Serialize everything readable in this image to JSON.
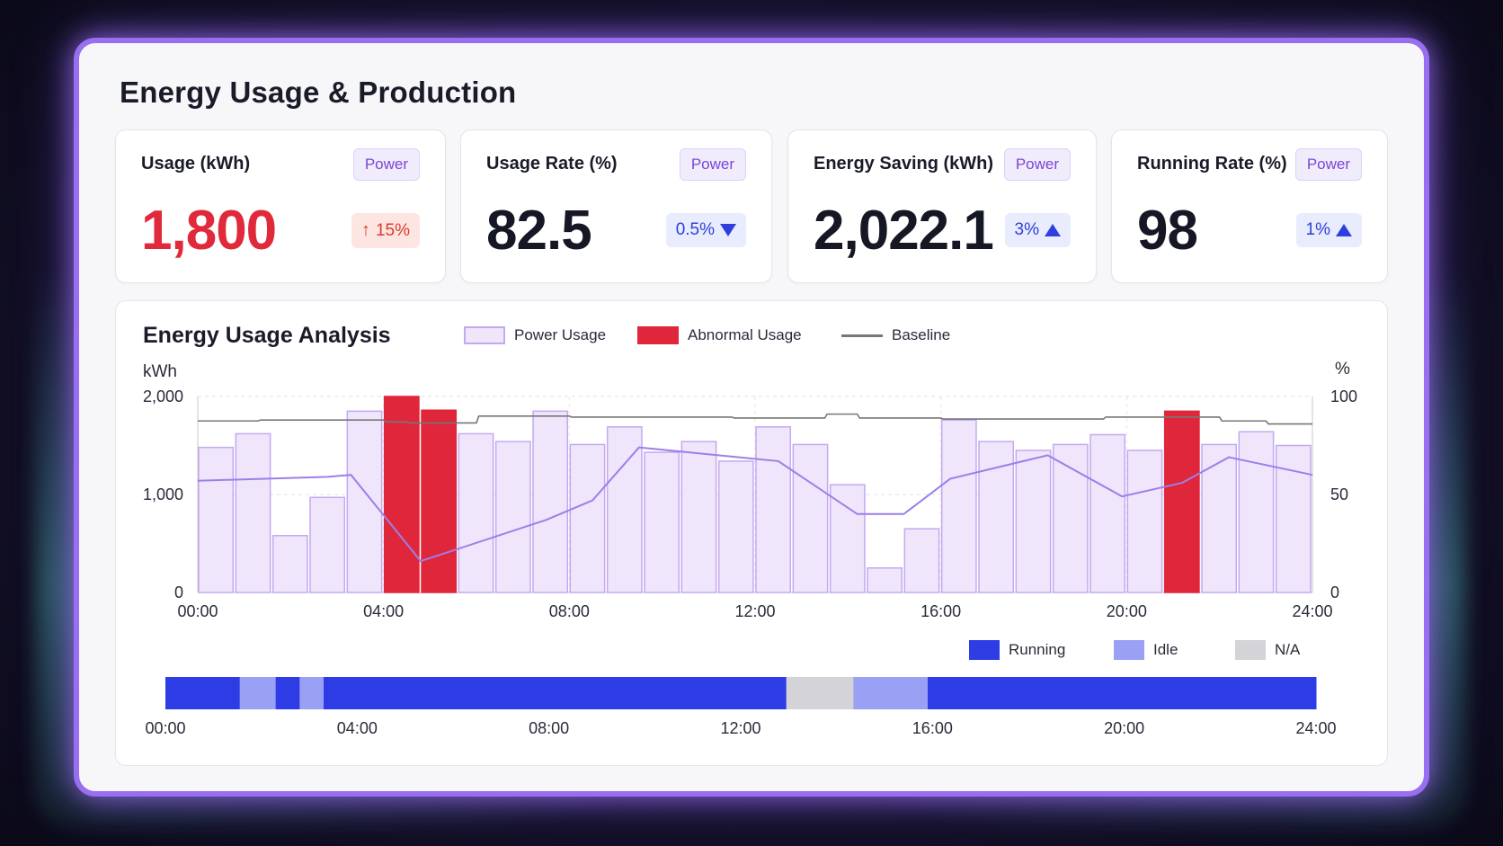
{
  "page": {
    "title": "Energy Usage & Production"
  },
  "cards": [
    {
      "label": "Usage (kWh)",
      "tag": "Power",
      "value": "1,800",
      "delta": "15%",
      "direction": "up",
      "tone": "red"
    },
    {
      "label": "Usage Rate (%)",
      "tag": "Power",
      "value": "82.5",
      "delta": "0.5%",
      "direction": "down",
      "tone": "blue"
    },
    {
      "label": "Energy Saving (kWh)",
      "tag": "Power",
      "value": "2,022.1",
      "delta": "3%",
      "direction": "up",
      "tone": "blue"
    },
    {
      "label": "Running Rate (%)",
      "tag": "Power",
      "value": "98",
      "delta": "1%",
      "direction": "up",
      "tone": "blue"
    }
  ],
  "analysis": {
    "title": "Energy Usage Analysis",
    "legend": {
      "usage": "Power Usage",
      "abnormal": "Abnormal Usage",
      "baseline": "Baseline"
    },
    "status_legend": {
      "running": "Running",
      "idle": "Idle",
      "na": "N/A"
    }
  },
  "colors": {
    "usage_fill": "#efe6fb",
    "usage_stroke": "#c4a9f0",
    "abnormal": "#e0263a",
    "line": "#9d7ee8",
    "baseline": "#777777",
    "running": "#2e3ce6",
    "idle": "#9aa1f5",
    "na": "#d4d4d8"
  },
  "chart_data": [
    {
      "type": "bar",
      "ylabel": "kWh",
      "y2label": "%",
      "ylim": [
        0,
        2000
      ],
      "y2lim": [
        0,
        100
      ],
      "y_ticks": [
        "0",
        "1,000",
        "2,000"
      ],
      "y2_ticks": [
        "0",
        "50",
        "100"
      ],
      "x_ticks": [
        "00:00",
        "04:00",
        "08:00",
        "12:00",
        "16:00",
        "20:00",
        "24:00"
      ],
      "xlim": [
        0,
        24
      ],
      "bars": [
        {
          "x": 0.0,
          "value": 1480,
          "abnormal": false
        },
        {
          "x": 0.8,
          "value": 1620,
          "abnormal": false
        },
        {
          "x": 1.6,
          "value": 580,
          "abnormal": false
        },
        {
          "x": 2.4,
          "value": 970,
          "abnormal": false
        },
        {
          "x": 3.2,
          "value": 1850,
          "abnormal": false
        },
        {
          "x": 4.0,
          "value": 2000,
          "abnormal": true
        },
        {
          "x": 4.8,
          "value": 1860,
          "abnormal": true
        },
        {
          "x": 5.6,
          "value": 1620,
          "abnormal": false
        },
        {
          "x": 6.4,
          "value": 1540,
          "abnormal": false
        },
        {
          "x": 7.2,
          "value": 1850,
          "abnormal": false
        },
        {
          "x": 8.0,
          "value": 1510,
          "abnormal": false
        },
        {
          "x": 8.8,
          "value": 1690,
          "abnormal": false
        },
        {
          "x": 9.6,
          "value": 1430,
          "abnormal": false
        },
        {
          "x": 10.4,
          "value": 1540,
          "abnormal": false
        },
        {
          "x": 11.2,
          "value": 1340,
          "abnormal": false
        },
        {
          "x": 12.0,
          "value": 1690,
          "abnormal": false
        },
        {
          "x": 12.8,
          "value": 1510,
          "abnormal": false
        },
        {
          "x": 13.6,
          "value": 1100,
          "abnormal": false
        },
        {
          "x": 14.4,
          "value": 250,
          "abnormal": false
        },
        {
          "x": 15.2,
          "value": 650,
          "abnormal": false
        },
        {
          "x": 16.0,
          "value": 1760,
          "abnormal": false
        },
        {
          "x": 16.8,
          "value": 1540,
          "abnormal": false
        },
        {
          "x": 17.6,
          "value": 1450,
          "abnormal": false
        },
        {
          "x": 18.4,
          "value": 1510,
          "abnormal": false
        },
        {
          "x": 19.2,
          "value": 1610,
          "abnormal": false
        },
        {
          "x": 20.0,
          "value": 1450,
          "abnormal": false
        },
        {
          "x": 20.8,
          "value": 1850,
          "abnormal": true
        },
        {
          "x": 21.6,
          "value": 1510,
          "abnormal": false
        },
        {
          "x": 22.4,
          "value": 1640,
          "abnormal": false
        },
        {
          "x": 23.2,
          "value": 1500,
          "abnormal": false
        }
      ],
      "bar_width_hours": 0.78,
      "rate_line": {
        "x": [
          0,
          2.8,
          3.3,
          4.8,
          7.5,
          8.5,
          9.5,
          12.5,
          14.2,
          15.2,
          16.2,
          18.3,
          19.9,
          21.2,
          22.2,
          24
        ],
        "values": [
          57,
          59,
          60,
          16,
          37,
          47,
          74,
          67,
          40,
          40,
          58,
          70,
          49,
          56,
          69,
          60
        ]
      },
      "baseline": {
        "x": [
          0,
          1.3,
          1.35,
          4.0,
          4.05,
          4.5,
          4.55,
          6.0,
          6.05,
          8.0,
          8.05,
          11.5,
          11.55,
          13.5,
          13.55,
          14.2,
          14.25,
          16.0,
          16.05,
          19.5,
          19.55,
          22.0,
          22.05,
          23.0,
          23.05,
          24
        ],
        "values": [
          87.5,
          87.5,
          88,
          88,
          87,
          87,
          86.5,
          86.5,
          90,
          90,
          89.5,
          89.5,
          89,
          89,
          91,
          91,
          89,
          89,
          88.5,
          88.5,
          89.5,
          89.5,
          87.5,
          87.5,
          86,
          86
        ]
      }
    },
    {
      "type": "timeline",
      "x_ticks": [
        "00:00",
        "04:00",
        "08:00",
        "12:00",
        "16:00",
        "20:00",
        "24:00"
      ],
      "xlim": [
        0,
        24
      ],
      "segments": [
        {
          "start": 0,
          "end": 1.55,
          "state": "Running"
        },
        {
          "start": 1.55,
          "end": 2.3,
          "state": "Idle"
        },
        {
          "start": 2.3,
          "end": 2.8,
          "state": "Running"
        },
        {
          "start": 2.8,
          "end": 3.3,
          "state": "Idle"
        },
        {
          "start": 3.3,
          "end": 12.95,
          "state": "Running"
        },
        {
          "start": 12.95,
          "end": 14.35,
          "state": "N/A"
        },
        {
          "start": 14.35,
          "end": 15.9,
          "state": "Idle"
        },
        {
          "start": 15.9,
          "end": 24,
          "state": "Running"
        }
      ]
    }
  ]
}
